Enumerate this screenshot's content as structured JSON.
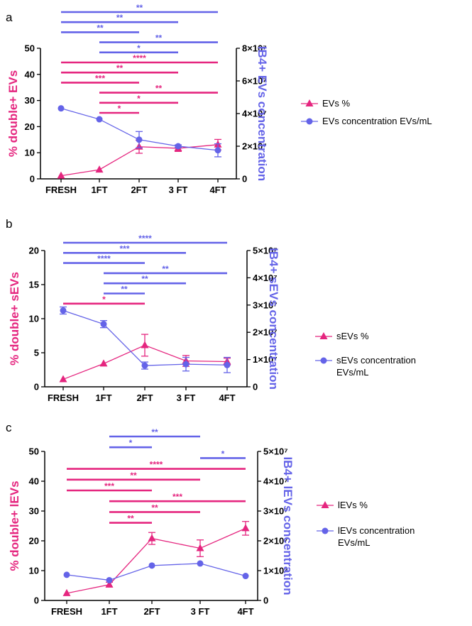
{
  "colors": {
    "pink": "#E5267F",
    "blue": "#6463E8",
    "axis": "#000000"
  },
  "chart_data": [
    {
      "panel_label": "a",
      "type": "line",
      "categories": [
        "FRESH",
        "1FT",
        "2FT",
        "3 FT",
        "4FT"
      ],
      "left_axis": {
        "label": "% double+ EVs",
        "ylim": [
          0,
          50
        ],
        "ticks": [
          "0",
          "10",
          "20",
          "30",
          "40",
          "50"
        ],
        "tick_values": [
          0,
          10,
          20,
          30,
          40,
          50
        ]
      },
      "right_axis": {
        "label": "IB4+ EVs concentration",
        "ylim": [
          0,
          80000000
        ],
        "ticks": [
          "0",
          "2×10⁷",
          "4×10⁷",
          "6×10⁷",
          "8×10⁷"
        ],
        "tick_values": [
          0,
          20000000,
          40000000,
          60000000,
          80000000
        ]
      },
      "series": [
        {
          "name": "EVs %",
          "axis": "left",
          "color": "#E5267F",
          "marker": "triangle",
          "values": [
            1.2,
            3.5,
            12.3,
            11.7,
            13.1
          ],
          "errors": [
            0,
            0,
            2.5,
            1.2,
            2.0
          ]
        },
        {
          "name": "EVs concentration EVs/mL",
          "axis": "right",
          "color": "#6463E8",
          "marker": "circle",
          "values": [
            43200000,
            36500000,
            24000000,
            20000000,
            17500000
          ],
          "errors": [
            0,
            0,
            5000000,
            800000,
            4000000
          ]
        }
      ],
      "significance": [
        {
          "from": 0,
          "to": 4,
          "label": "**",
          "color": "#6463E8"
        },
        {
          "from": 0,
          "to": 3,
          "label": "**",
          "color": "#6463E8"
        },
        {
          "from": 0,
          "to": 2,
          "label": "**",
          "color": "#6463E8"
        },
        {
          "from": 1,
          "to": 4,
          "label": "**",
          "color": "#6463E8"
        },
        {
          "from": 1,
          "to": 3,
          "label": "*",
          "color": "#6463E8"
        },
        {
          "from": 0,
          "to": 4,
          "label": "****",
          "color": "#E5267F"
        },
        {
          "from": 0,
          "to": 3,
          "label": "**",
          "color": "#E5267F"
        },
        {
          "from": 0,
          "to": 2,
          "label": "***",
          "color": "#E5267F"
        },
        {
          "from": 1,
          "to": 4,
          "label": "**",
          "color": "#E5267F"
        },
        {
          "from": 1,
          "to": 3,
          "label": "*",
          "color": "#E5267F"
        },
        {
          "from": 1,
          "to": 2,
          "label": "*",
          "color": "#E5267F"
        }
      ],
      "legend_position": "right"
    },
    {
      "panel_label": "b",
      "type": "line",
      "categories": [
        "FRESH",
        "1FT",
        "2FT",
        "3 FT",
        "4FT"
      ],
      "left_axis": {
        "label": "% double+ sEVs",
        "ylim": [
          0,
          20
        ],
        "ticks": [
          "0",
          "5",
          "10",
          "15",
          "20"
        ],
        "tick_values": [
          0,
          5,
          10,
          15,
          20
        ]
      },
      "right_axis": {
        "label": "IB4+ sEVs concentration",
        "ylim": [
          0,
          50000000
        ],
        "ticks": [
          "0",
          "1×10⁷",
          "2×10⁷",
          "3×10⁷",
          "4×10⁷",
          "5×10⁷"
        ],
        "tick_values": [
          0,
          10000000,
          20000000,
          30000000,
          40000000,
          50000000
        ]
      },
      "series": [
        {
          "name": "sEVs %",
          "axis": "left",
          "color": "#E5267F",
          "marker": "triangle",
          "values": [
            1.1,
            3.4,
            6.1,
            3.8,
            3.7
          ],
          "errors": [
            0,
            0,
            1.6,
            0.8,
            0.5
          ]
        },
        {
          "name": "sEVs concentration EVs/mL",
          "axis": "right",
          "color": "#6463E8",
          "marker": "circle",
          "values": [
            28000000,
            23000000,
            7800000,
            8300000,
            8000000
          ],
          "errors": [
            1300000,
            1300000,
            1300000,
            2500000,
            2800000
          ]
        }
      ],
      "significance": [
        {
          "from": 0,
          "to": 4,
          "label": "****",
          "color": "#6463E8"
        },
        {
          "from": 0,
          "to": 3,
          "label": "***",
          "color": "#6463E8"
        },
        {
          "from": 0,
          "to": 2,
          "label": "****",
          "color": "#6463E8"
        },
        {
          "from": 1,
          "to": 4,
          "label": "**",
          "color": "#6463E8"
        },
        {
          "from": 1,
          "to": 3,
          "label": "**",
          "color": "#6463E8"
        },
        {
          "from": 1,
          "to": 2,
          "label": "**",
          "color": "#6463E8"
        },
        {
          "from": 0,
          "to": 2,
          "label": "*",
          "color": "#E5267F"
        }
      ],
      "legend_position": "right"
    },
    {
      "panel_label": "c",
      "type": "line",
      "categories": [
        "FRESH",
        "1FT",
        "2FT",
        "3 FT",
        "4FT"
      ],
      "left_axis": {
        "label": "% double+ lEVs",
        "ylim": [
          0,
          50
        ],
        "ticks": [
          "0",
          "10",
          "20",
          "30",
          "40",
          "50"
        ],
        "tick_values": [
          0,
          10,
          20,
          30,
          40,
          50
        ]
      },
      "right_axis": {
        "label": "IB4+ lEVs concentration",
        "ylim": [
          0,
          50000000
        ],
        "ticks": [
          "0",
          "1×10⁷",
          "2×10⁷",
          "3×10⁷",
          "4×10⁷",
          "5×10⁷"
        ],
        "tick_values": [
          0,
          10000000,
          20000000,
          30000000,
          40000000,
          50000000
        ]
      },
      "series": [
        {
          "name": "lEVs %",
          "axis": "left",
          "color": "#E5267F",
          "marker": "triangle",
          "values": [
            2.4,
            5.3,
            20.8,
            17.5,
            24.2
          ],
          "errors": [
            0,
            0.8,
            2.0,
            2.8,
            2.3
          ]
        },
        {
          "name": "lEVs concentration EVs/mL",
          "axis": "right",
          "color": "#6463E8",
          "marker": "circle",
          "values": [
            8600000,
            6800000,
            11700000,
            12400000,
            8200000
          ],
          "errors": [
            0,
            0,
            0,
            0,
            0
          ]
        }
      ],
      "significance": [
        {
          "from": 1,
          "to": 3,
          "label": "**",
          "color": "#6463E8"
        },
        {
          "from": 1,
          "to": 2,
          "label": "*",
          "color": "#6463E8"
        },
        {
          "from": 3,
          "to": 4,
          "label": "*",
          "color": "#6463E8"
        },
        {
          "from": 0,
          "to": 4,
          "label": "****",
          "color": "#E5267F"
        },
        {
          "from": 0,
          "to": 3,
          "label": "**",
          "color": "#E5267F"
        },
        {
          "from": 0,
          "to": 2,
          "label": "***",
          "color": "#E5267F"
        },
        {
          "from": 1,
          "to": 4,
          "label": "***",
          "color": "#E5267F"
        },
        {
          "from": 1,
          "to": 3,
          "label": "**",
          "color": "#E5267F"
        },
        {
          "from": 1,
          "to": 2,
          "label": "**",
          "color": "#E5267F"
        }
      ],
      "legend_position": "right"
    }
  ]
}
